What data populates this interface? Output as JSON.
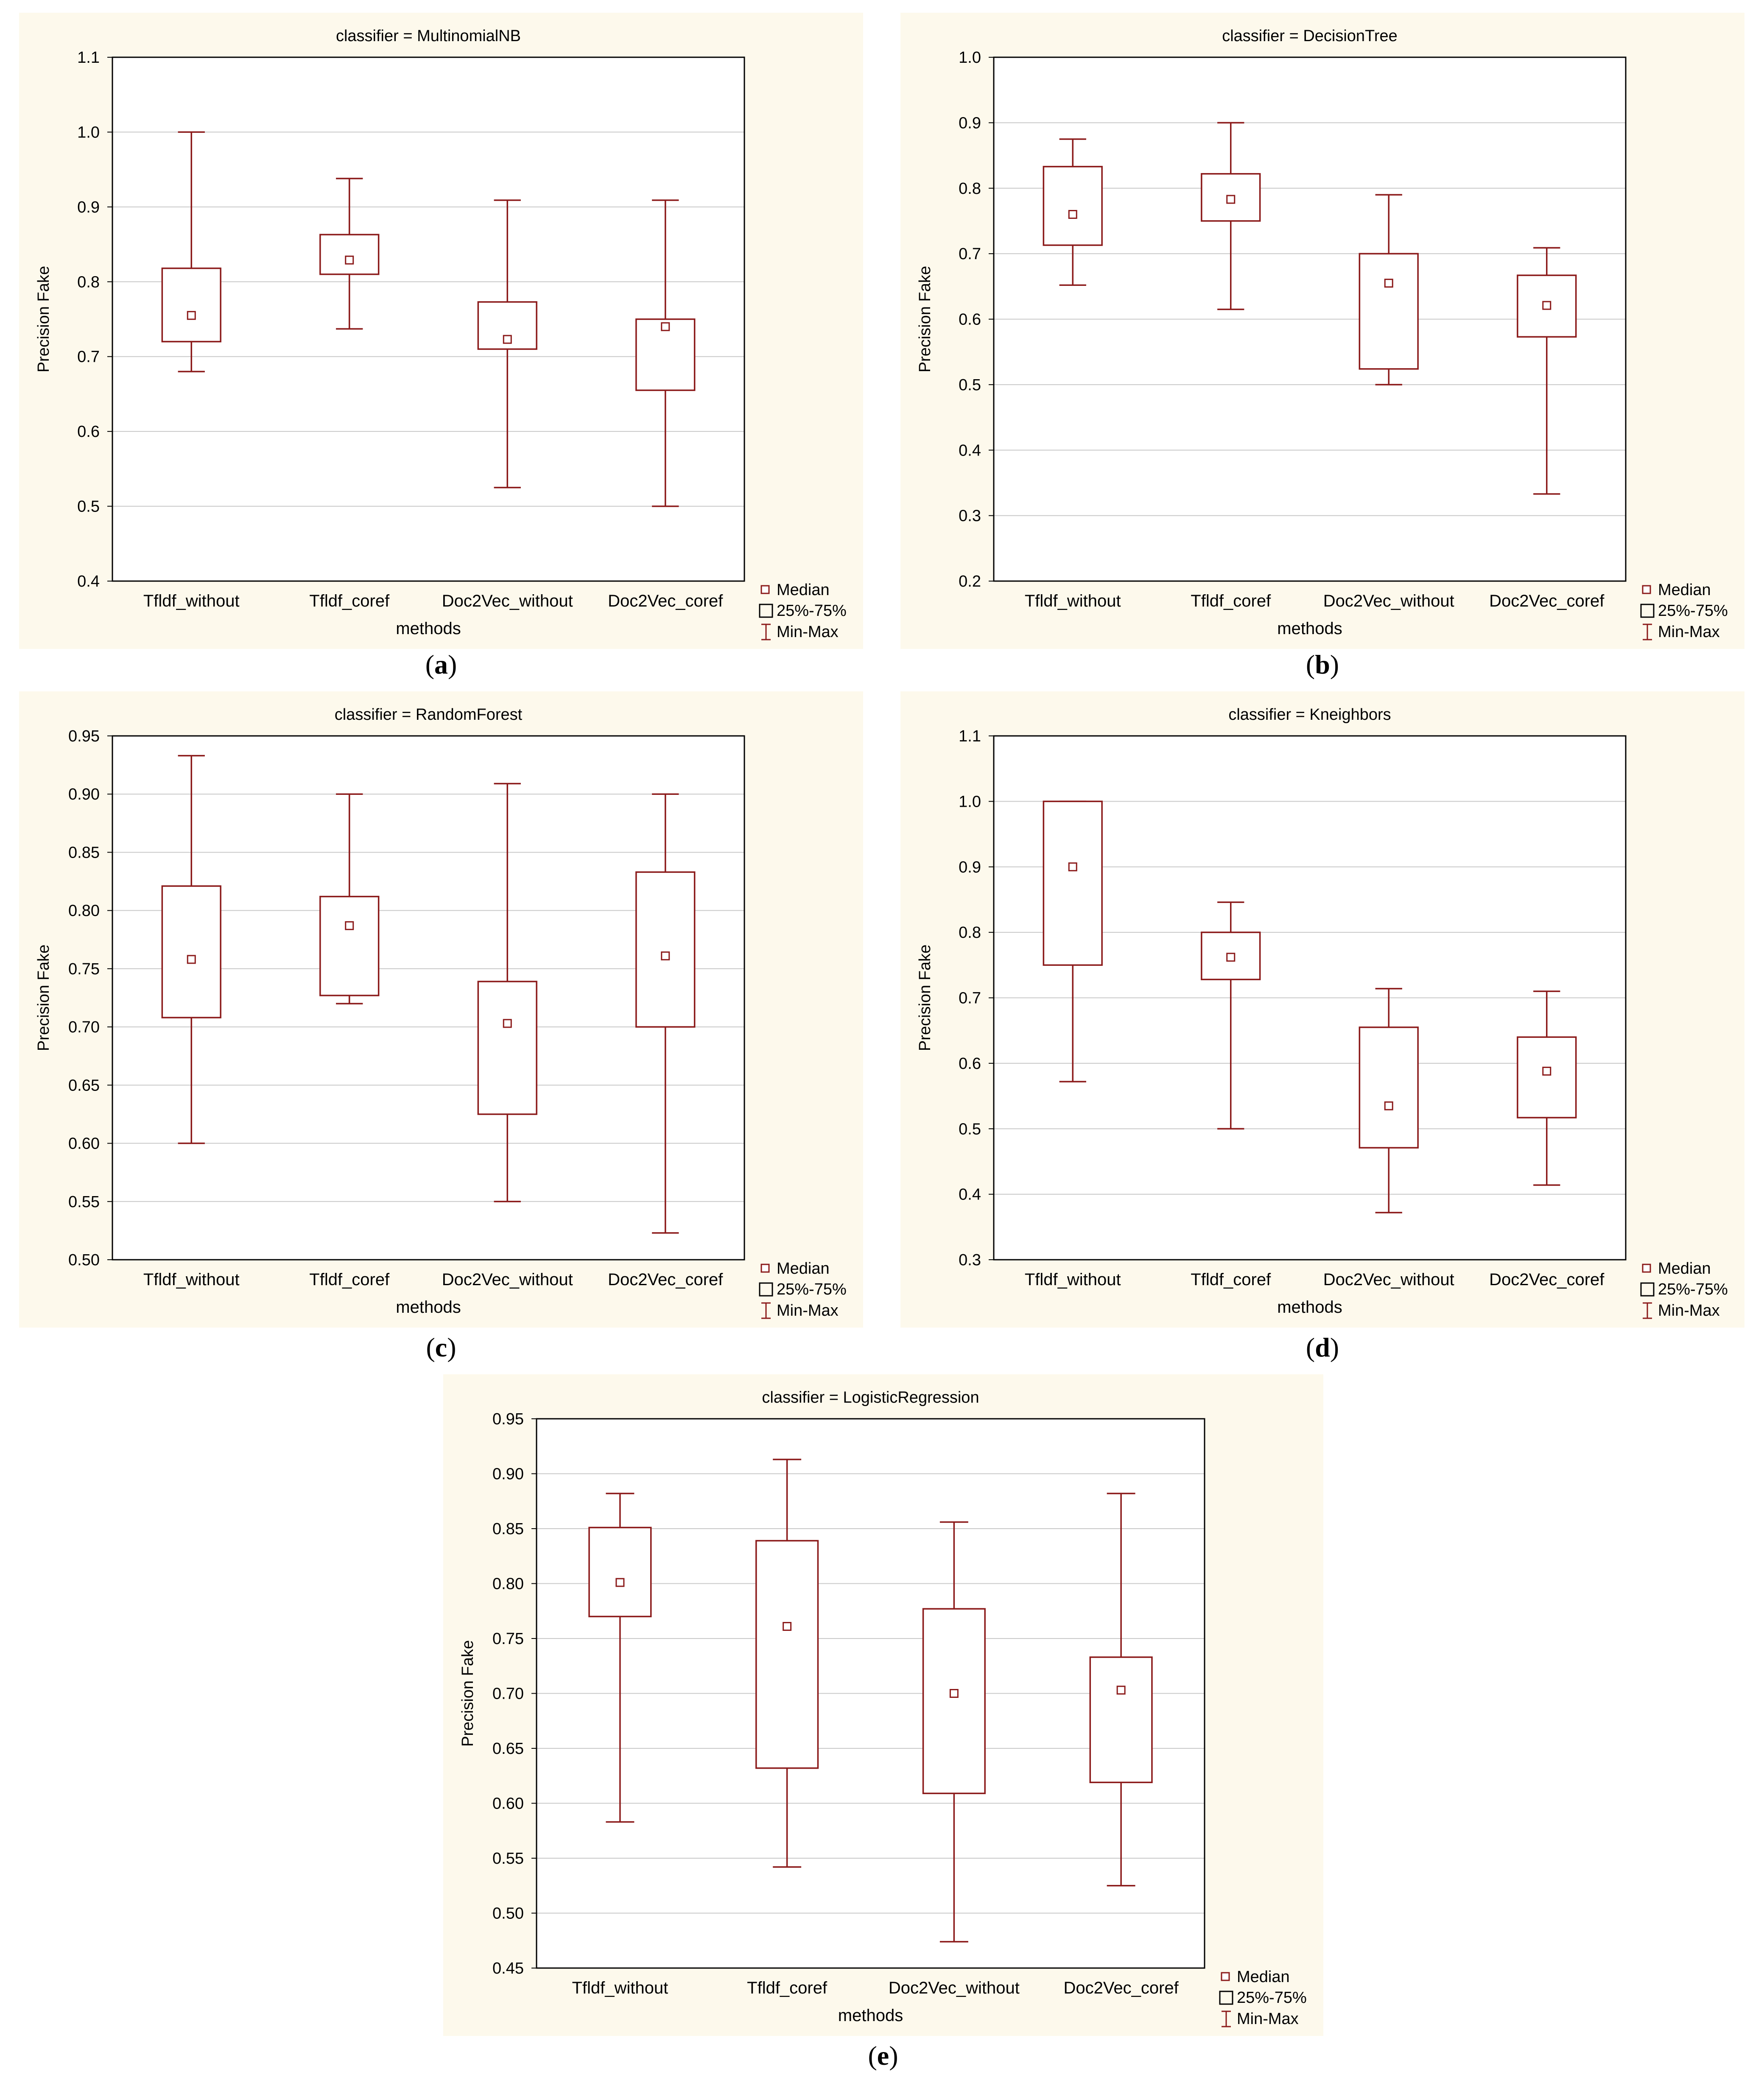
{
  "colors": {
    "panel_background": "#fdf9ec",
    "plot_background": "#ffffff",
    "box_stroke": "#8b1a1a",
    "grid": "#c8c8c8",
    "axis": "#000000"
  },
  "legend": {
    "median": "Median",
    "iqr": "25%-75%",
    "range": "Min-Max"
  },
  "chart_data": [
    {
      "id": "a",
      "panel_label": "a",
      "type": "box",
      "title": "classifier = MultinomialNB",
      "xlabel": "methods",
      "ylabel": "Precision Fake",
      "categories": [
        "Tfldf_without",
        "Tfldf_coref",
        "Doc2Vec_without",
        "Doc2Vec_coref"
      ],
      "ylim": [
        0.4,
        1.1
      ],
      "yticks": [
        0.4,
        0.5,
        0.6,
        0.7,
        0.8,
        0.9,
        1.0,
        1.1
      ],
      "ytick_labels": [
        "0.4",
        "0.5",
        "0.6",
        "0.7",
        "0.8",
        "0.9",
        "1.0",
        "1.1"
      ],
      "grid": true,
      "boxes": [
        {
          "min": 0.68,
          "q1": 0.72,
          "median": 0.755,
          "q3": 0.818,
          "max": 1.0
        },
        {
          "min": 0.737,
          "q1": 0.81,
          "median": 0.829,
          "q3": 0.863,
          "max": 0.938
        },
        {
          "min": 0.525,
          "q1": 0.71,
          "median": 0.723,
          "q3": 0.773,
          "max": 0.909
        },
        {
          "min": 0.5,
          "q1": 0.655,
          "median": 0.74,
          "q3": 0.75,
          "max": 0.909
        }
      ]
    },
    {
      "id": "b",
      "panel_label": "b",
      "type": "box",
      "title": "classifier = DecisionTree",
      "xlabel": "methods",
      "ylabel": "Precision Fake",
      "categories": [
        "Tfldf_without",
        "Tfldf_coref",
        "Doc2Vec_without",
        "Doc2Vec_coref"
      ],
      "ylim": [
        0.2,
        1.0
      ],
      "yticks": [
        0.2,
        0.3,
        0.4,
        0.5,
        0.6,
        0.7,
        0.8,
        0.9,
        1.0
      ],
      "ytick_labels": [
        "0.2",
        "0.3",
        "0.4",
        "0.5",
        "0.6",
        "0.7",
        "0.8",
        "0.9",
        "1.0"
      ],
      "grid": true,
      "boxes": [
        {
          "min": 0.652,
          "q1": 0.713,
          "median": 0.76,
          "q3": 0.833,
          "max": 0.875
        },
        {
          "min": 0.615,
          "q1": 0.75,
          "median": 0.783,
          "q3": 0.822,
          "max": 0.9
        },
        {
          "min": 0.5,
          "q1": 0.524,
          "median": 0.655,
          "q3": 0.7,
          "max": 0.79
        },
        {
          "min": 0.333,
          "q1": 0.573,
          "median": 0.621,
          "q3": 0.667,
          "max": 0.709
        }
      ]
    },
    {
      "id": "c",
      "panel_label": "c",
      "type": "box",
      "title": "classifier = RandomForest",
      "xlabel": "methods",
      "ylabel": "Precision Fake",
      "categories": [
        "Tfldf_without",
        "Tfldf_coref",
        "Doc2Vec_without",
        "Doc2Vec_coref"
      ],
      "ylim": [
        0.5,
        0.95
      ],
      "yticks": [
        0.5,
        0.55,
        0.6,
        0.65,
        0.7,
        0.75,
        0.8,
        0.85,
        0.9,
        0.95
      ],
      "ytick_labels": [
        "0.50",
        "0.55",
        "0.60",
        "0.65",
        "0.70",
        "0.75",
        "0.80",
        "0.85",
        "0.90",
        "0.95"
      ],
      "grid": true,
      "boxes": [
        {
          "min": 0.6,
          "q1": 0.708,
          "median": 0.758,
          "q3": 0.821,
          "max": 0.933
        },
        {
          "min": 0.72,
          "q1": 0.727,
          "median": 0.787,
          "q3": 0.812,
          "max": 0.9
        },
        {
          "min": 0.55,
          "q1": 0.625,
          "median": 0.703,
          "q3": 0.739,
          "max": 0.909
        },
        {
          "min": 0.523,
          "q1": 0.7,
          "median": 0.761,
          "q3": 0.833,
          "max": 0.9
        }
      ]
    },
    {
      "id": "d",
      "panel_label": "d",
      "type": "box",
      "title": "classifier = Kneighbors",
      "xlabel": "methods",
      "ylabel": "Precision Fake",
      "categories": [
        "Tfldf_without",
        "Tfldf_coref",
        "Doc2Vec_without",
        "Doc2Vec_coref"
      ],
      "ylim": [
        0.3,
        1.1
      ],
      "yticks": [
        0.3,
        0.4,
        0.5,
        0.6,
        0.7,
        0.8,
        0.9,
        1.0,
        1.1
      ],
      "ytick_labels": [
        "0.3",
        "0.4",
        "0.5",
        "0.6",
        "0.7",
        "0.8",
        "0.9",
        "1.0",
        "1.1"
      ],
      "grid": true,
      "boxes": [
        {
          "min": 0.572,
          "q1": 0.75,
          "median": 0.9,
          "q3": 1.0,
          "max": 1.0
        },
        {
          "min": 0.5,
          "q1": 0.728,
          "median": 0.762,
          "q3": 0.8,
          "max": 0.846
        },
        {
          "min": 0.372,
          "q1": 0.471,
          "median": 0.535,
          "q3": 0.655,
          "max": 0.714
        },
        {
          "min": 0.414,
          "q1": 0.517,
          "median": 0.588,
          "q3": 0.64,
          "max": 0.71
        }
      ]
    },
    {
      "id": "e",
      "panel_label": "e",
      "type": "box",
      "title": "classifier = LogisticRegression",
      "xlabel": "methods",
      "ylabel": "Precision Fake",
      "categories": [
        "Tfldf_without",
        "Tfldf_coref",
        "Doc2Vec_without",
        "Doc2Vec_coref"
      ],
      "ylim": [
        0.45,
        0.95
      ],
      "yticks": [
        0.45,
        0.5,
        0.55,
        0.6,
        0.65,
        0.7,
        0.75,
        0.8,
        0.85,
        0.9,
        0.95
      ],
      "ytick_labels": [
        "0.45",
        "0.50",
        "0.55",
        "0.60",
        "0.65",
        "0.70",
        "0.75",
        "0.80",
        "0.85",
        "0.90",
        "0.95"
      ],
      "grid": true,
      "boxes": [
        {
          "min": 0.583,
          "q1": 0.77,
          "median": 0.801,
          "q3": 0.851,
          "max": 0.882
        },
        {
          "min": 0.542,
          "q1": 0.632,
          "median": 0.761,
          "q3": 0.839,
          "max": 0.913
        },
        {
          "min": 0.474,
          "q1": 0.609,
          "median": 0.7,
          "q3": 0.777,
          "max": 0.856
        },
        {
          "min": 0.525,
          "q1": 0.619,
          "median": 0.703,
          "q3": 0.733,
          "max": 0.882
        }
      ]
    }
  ]
}
